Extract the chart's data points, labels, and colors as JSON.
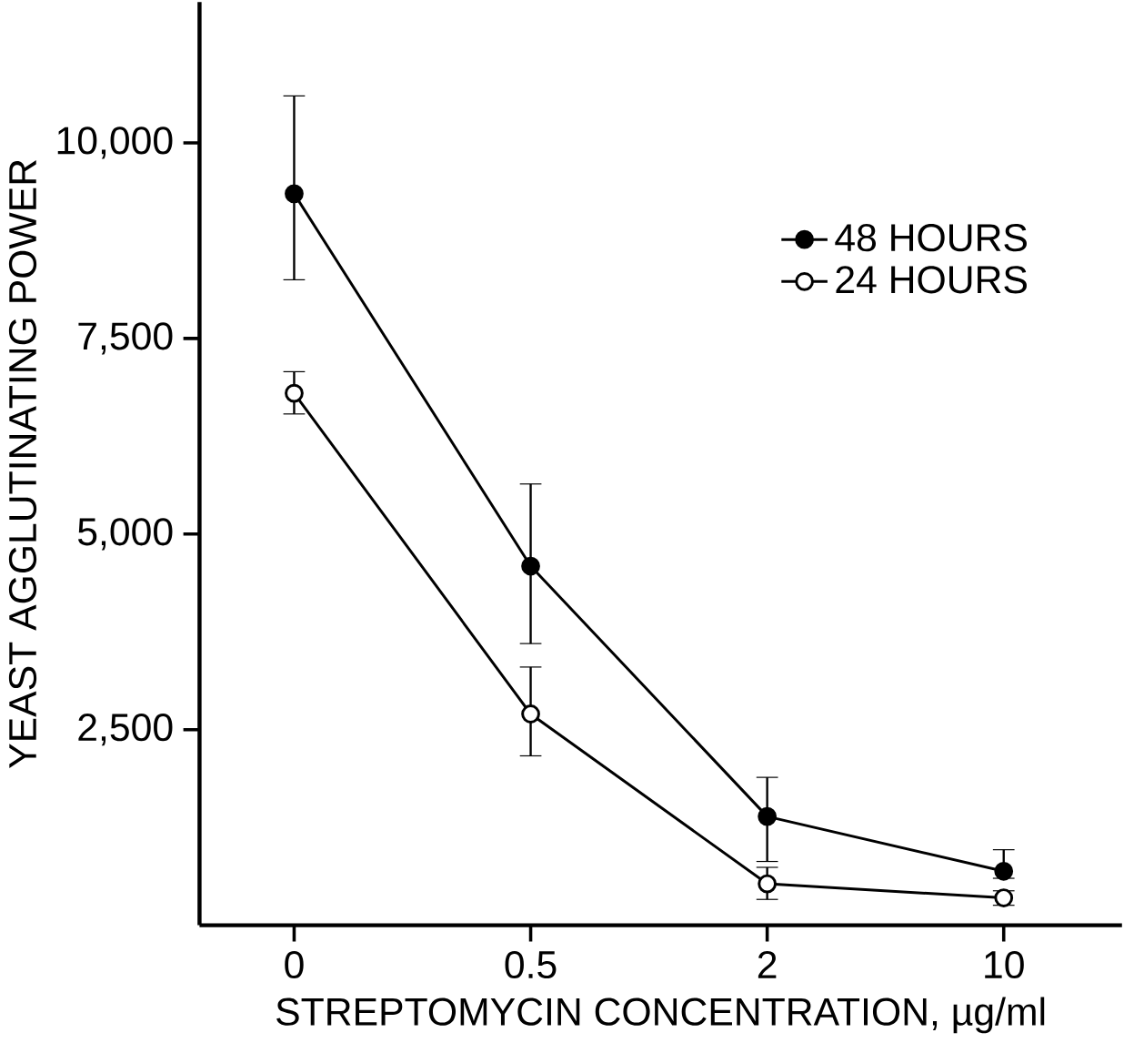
{
  "chart_data": {
    "type": "line",
    "xlabel": "STREPTOMYCIN  CONCENTRATION, µg/ml",
    "ylabel": "YEAST AGGLUTINATING POWER",
    "categories": [
      "0",
      "0.5",
      "2",
      "10"
    ],
    "series": [
      {
        "name": "48 HOURS",
        "color": "#000000",
        "values": [
          9350,
          4590,
          1390,
          690
        ],
        "errors": [
          [
            8250,
            10600
          ],
          [
            3600,
            5640
          ],
          [
            815,
            1890
          ],
          [
            600,
            965
          ]
        ]
      },
      {
        "name": "24 HOURS",
        "color": "#000000",
        "values": [
          6800,
          2700,
          530,
          350
        ],
        "errors": [
          [
            6535,
            7075
          ],
          [
            2165,
            3300
          ],
          [
            330,
            740
          ],
          [
            255,
            440
          ]
        ]
      }
    ],
    "ylim": [
      0,
      11800
    ],
    "yticks": [
      {
        "value": 2500,
        "label": "2,500"
      },
      {
        "value": 5000,
        "label": "5,000"
      },
      {
        "value": 7500,
        "label": "7,500"
      },
      {
        "value": 10000,
        "label": "10,000"
      }
    ],
    "legend": "right",
    "marker": "circle",
    "line_style": "solid",
    "grid": false
  }
}
